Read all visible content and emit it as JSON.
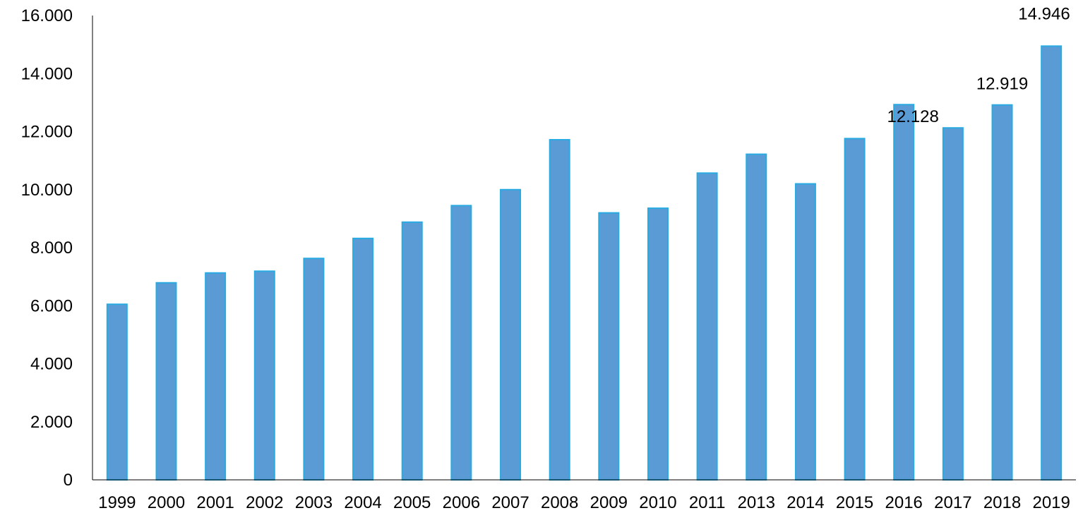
{
  "chart_data": {
    "type": "bar",
    "title": "",
    "xlabel": "",
    "ylabel": "",
    "categories": [
      "1999",
      "2000",
      "2001",
      "2002",
      "2003",
      "2004",
      "2005",
      "2006",
      "2007",
      "2008",
      "2009",
      "2010",
      "2011",
      "2013",
      "2014",
      "2015",
      "2016",
      "2017",
      "2018",
      "2019"
    ],
    "values": [
      6050,
      6790,
      7130,
      7190,
      7630,
      8320,
      8880,
      9450,
      10000,
      11720,
      9200,
      9360,
      10570,
      11220,
      10200,
      11760,
      12930,
      12128,
      12919,
      14946
    ],
    "ylim": [
      0,
      16000
    ],
    "yticks": [
      "0",
      "2.000",
      "4.000",
      "6.000",
      "8.000",
      "10.000",
      "12.000",
      "14.000",
      "16.000"
    ],
    "data_labels": [
      {
        "category": "2017",
        "text": "12.128"
      },
      {
        "category": "2018",
        "text": "12.919"
      },
      {
        "category": "2019",
        "text": "14.946"
      }
    ],
    "grid": false,
    "legend": "none",
    "colors": {
      "bar_fill": "#5b9bd5",
      "bar_edge": "#29abe2",
      "axis": "#000000"
    }
  }
}
